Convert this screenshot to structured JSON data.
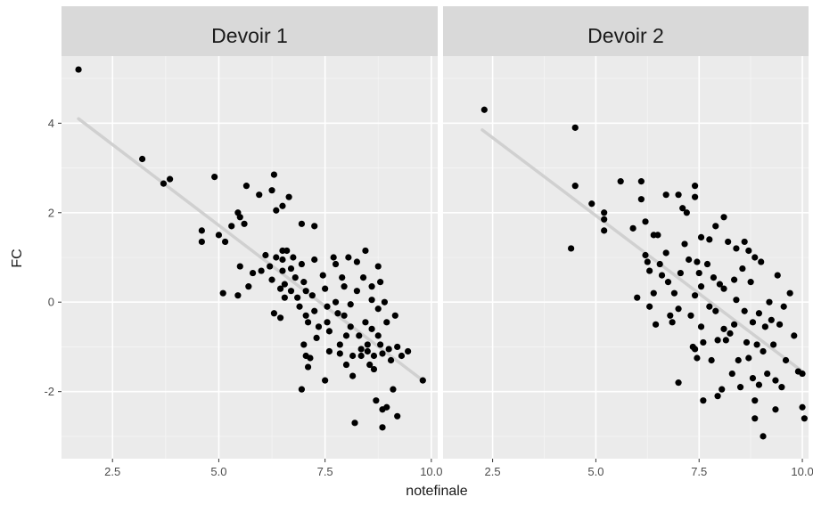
{
  "chart_data": {
    "type": "scatter",
    "xlabel": "notefinale",
    "ylabel": "FC",
    "xlim": [
      1.3,
      10.15
    ],
    "ylim": [
      -3.5,
      5.5
    ],
    "x_ticks": [
      2.5,
      5.0,
      7.5,
      10.0
    ],
    "x_tick_labels": [
      "2.5",
      "5.0",
      "7.5",
      "10.0"
    ],
    "y_ticks": [
      -2,
      0,
      2,
      4
    ],
    "y_tick_labels": [
      "-2",
      "0",
      "2",
      "4"
    ],
    "grid": true,
    "legend": "none",
    "colors": {
      "points": "#000000",
      "fit_line": "#d0d0d0",
      "panel": "#ebebeb",
      "strip": "#d9d9d9"
    },
    "panels": [
      {
        "name": "Devoir 1",
        "fit_line": {
          "x": [
            1.7,
            9.8
          ],
          "y": [
            4.1,
            -1.75
          ]
        },
        "points": [
          [
            1.7,
            5.2
          ],
          [
            3.2,
            3.2
          ],
          [
            3.7,
            2.65
          ],
          [
            3.85,
            2.75
          ],
          [
            4.9,
            2.8
          ],
          [
            4.6,
            1.6
          ],
          [
            4.6,
            1.35
          ],
          [
            5.0,
            1.5
          ],
          [
            5.15,
            1.35
          ],
          [
            5.1,
            0.2
          ],
          [
            5.3,
            1.7
          ],
          [
            5.45,
            2.0
          ],
          [
            5.65,
            2.6
          ],
          [
            5.6,
            1.75
          ],
          [
            5.5,
            1.9
          ],
          [
            5.5,
            0.8
          ],
          [
            5.45,
            0.15
          ],
          [
            5.7,
            0.35
          ],
          [
            5.8,
            0.65
          ],
          [
            5.95,
            2.4
          ],
          [
            6.1,
            1.05
          ],
          [
            6.0,
            0.7
          ],
          [
            6.2,
            0.8
          ],
          [
            6.3,
            2.85
          ],
          [
            6.25,
            2.5
          ],
          [
            6.25,
            0.5
          ],
          [
            6.35,
            2.05
          ],
          [
            6.5,
            2.15
          ],
          [
            6.65,
            2.35
          ],
          [
            6.3,
            -0.25
          ],
          [
            6.45,
            -0.35
          ],
          [
            6.35,
            1.0
          ],
          [
            6.5,
            1.15
          ],
          [
            6.6,
            1.15
          ],
          [
            6.5,
            0.95
          ],
          [
            6.5,
            0.7
          ],
          [
            6.45,
            0.3
          ],
          [
            6.55,
            0.4
          ],
          [
            6.55,
            0.1
          ],
          [
            6.7,
            0.75
          ],
          [
            6.75,
            1.0
          ],
          [
            6.8,
            0.55
          ],
          [
            6.7,
            0.25
          ],
          [
            6.85,
            0.1
          ],
          [
            6.9,
            -0.1
          ],
          [
            6.95,
            1.75
          ],
          [
            6.95,
            0.85
          ],
          [
            7.0,
            0.45
          ],
          [
            7.05,
            0.25
          ],
          [
            7.05,
            -0.3
          ],
          [
            7.1,
            -0.45
          ],
          [
            7.2,
            0.15
          ],
          [
            7.25,
            1.7
          ],
          [
            7.25,
            0.95
          ],
          [
            7.25,
            -0.2
          ],
          [
            7.35,
            -0.55
          ],
          [
            7.0,
            -0.95
          ],
          [
            7.05,
            -1.2
          ],
          [
            7.1,
            -1.45
          ],
          [
            6.95,
            -1.95
          ],
          [
            7.15,
            -1.25
          ],
          [
            7.3,
            -0.8
          ],
          [
            7.45,
            0.6
          ],
          [
            7.5,
            0.3
          ],
          [
            7.55,
            -0.1
          ],
          [
            7.55,
            -0.45
          ],
          [
            7.6,
            -0.65
          ],
          [
            7.6,
            -1.1
          ],
          [
            7.5,
            -1.75
          ],
          [
            7.7,
            1.0
          ],
          [
            7.75,
            0.85
          ],
          [
            7.75,
            0.0
          ],
          [
            7.8,
            -0.25
          ],
          [
            7.85,
            -0.95
          ],
          [
            7.85,
            -1.15
          ],
          [
            7.9,
            0.55
          ],
          [
            7.95,
            0.35
          ],
          [
            7.95,
            -0.3
          ],
          [
            8.0,
            -0.75
          ],
          [
            8.0,
            -1.4
          ],
          [
            8.05,
            1.0
          ],
          [
            8.1,
            -0.05
          ],
          [
            8.1,
            -0.55
          ],
          [
            8.15,
            -1.2
          ],
          [
            8.15,
            -1.65
          ],
          [
            8.2,
            -2.7
          ],
          [
            8.25,
            0.9
          ],
          [
            8.25,
            0.25
          ],
          [
            8.3,
            -0.75
          ],
          [
            8.35,
            -1.05
          ],
          [
            8.35,
            -1.2
          ],
          [
            8.4,
            0.55
          ],
          [
            8.45,
            1.15
          ],
          [
            8.45,
            -0.45
          ],
          [
            8.5,
            -0.95
          ],
          [
            8.5,
            -1.1
          ],
          [
            8.55,
            -1.4
          ],
          [
            8.6,
            0.35
          ],
          [
            8.6,
            0.05
          ],
          [
            8.6,
            -0.6
          ],
          [
            8.65,
            -1.2
          ],
          [
            8.65,
            -1.5
          ],
          [
            8.7,
            -2.2
          ],
          [
            8.75,
            0.8
          ],
          [
            8.75,
            -0.15
          ],
          [
            8.75,
            -0.75
          ],
          [
            8.8,
            0.45
          ],
          [
            8.8,
            -0.95
          ],
          [
            8.85,
            -1.15
          ],
          [
            8.85,
            -2.4
          ],
          [
            8.85,
            -2.8
          ],
          [
            8.9,
            0.0
          ],
          [
            8.95,
            -0.45
          ],
          [
            8.95,
            -2.35
          ],
          [
            9.0,
            -1.05
          ],
          [
            9.05,
            -1.3
          ],
          [
            9.1,
            -1.95
          ],
          [
            9.15,
            -0.3
          ],
          [
            9.2,
            -1.0
          ],
          [
            9.2,
            -2.55
          ],
          [
            9.3,
            -1.2
          ],
          [
            9.45,
            -1.1
          ],
          [
            9.8,
            -1.75
          ]
        ]
      },
      {
        "name": "Devoir 2",
        "fit_line": {
          "x": [
            2.25,
            10.0
          ],
          "y": [
            3.85,
            -1.55
          ]
        },
        "points": [
          [
            2.3,
            4.3
          ],
          [
            4.5,
            3.9
          ],
          [
            4.5,
            2.6
          ],
          [
            4.4,
            1.2
          ],
          [
            4.9,
            2.2
          ],
          [
            5.2,
            2.0
          ],
          [
            5.2,
            1.85
          ],
          [
            5.2,
            1.6
          ],
          [
            5.6,
            2.7
          ],
          [
            5.9,
            1.65
          ],
          [
            6.1,
            2.7
          ],
          [
            6.1,
            2.3
          ],
          [
            6.0,
            0.1
          ],
          [
            6.2,
            1.8
          ],
          [
            6.2,
            1.05
          ],
          [
            6.25,
            0.9
          ],
          [
            6.3,
            0.7
          ],
          [
            6.3,
            -0.1
          ],
          [
            6.4,
            1.5
          ],
          [
            6.4,
            0.2
          ],
          [
            6.45,
            -0.5
          ],
          [
            6.5,
            1.5
          ],
          [
            6.55,
            0.85
          ],
          [
            6.6,
            0.6
          ],
          [
            6.7,
            2.4
          ],
          [
            6.7,
            1.1
          ],
          [
            6.75,
            0.45
          ],
          [
            6.8,
            -0.3
          ],
          [
            6.85,
            -0.45
          ],
          [
            6.9,
            0.2
          ],
          [
            7.0,
            2.4
          ],
          [
            7.05,
            0.65
          ],
          [
            7.0,
            -0.15
          ],
          [
            7.0,
            -1.8
          ],
          [
            7.1,
            2.1
          ],
          [
            7.15,
            1.3
          ],
          [
            7.2,
            2.0
          ],
          [
            7.25,
            0.95
          ],
          [
            7.3,
            -0.3
          ],
          [
            7.35,
            -1.0
          ],
          [
            7.4,
            2.6
          ],
          [
            7.4,
            2.35
          ],
          [
            7.4,
            0.15
          ],
          [
            7.4,
            -1.05
          ],
          [
            7.45,
            -1.25
          ],
          [
            7.45,
            0.9
          ],
          [
            7.5,
            0.65
          ],
          [
            7.55,
            1.45
          ],
          [
            7.55,
            0.35
          ],
          [
            7.55,
            -0.55
          ],
          [
            7.6,
            -0.9
          ],
          [
            7.6,
            -2.2
          ],
          [
            7.7,
            0.85
          ],
          [
            7.75,
            1.4
          ],
          [
            7.75,
            -0.1
          ],
          [
            7.8,
            -1.3
          ],
          [
            7.85,
            0.55
          ],
          [
            7.9,
            1.7
          ],
          [
            7.9,
            -0.2
          ],
          [
            7.95,
            -0.85
          ],
          [
            7.95,
            -2.1
          ],
          [
            8.0,
            0.4
          ],
          [
            8.05,
            -1.95
          ],
          [
            8.1,
            1.9
          ],
          [
            8.1,
            0.3
          ],
          [
            8.1,
            -0.6
          ],
          [
            8.15,
            -0.85
          ],
          [
            8.2,
            1.35
          ],
          [
            8.25,
            -0.7
          ],
          [
            8.3,
            -1.6
          ],
          [
            8.35,
            0.5
          ],
          [
            8.35,
            -0.5
          ],
          [
            8.4,
            1.2
          ],
          [
            8.4,
            0.05
          ],
          [
            8.45,
            -1.3
          ],
          [
            8.5,
            -1.9
          ],
          [
            8.55,
            0.75
          ],
          [
            8.6,
            1.35
          ],
          [
            8.6,
            -0.2
          ],
          [
            8.65,
            -0.9
          ],
          [
            8.7,
            1.15
          ],
          [
            8.7,
            -1.25
          ],
          [
            8.75,
            0.45
          ],
          [
            8.8,
            -0.45
          ],
          [
            8.8,
            -1.7
          ],
          [
            8.85,
            1.0
          ],
          [
            8.85,
            -2.2
          ],
          [
            8.85,
            -2.6
          ],
          [
            8.9,
            -0.95
          ],
          [
            8.95,
            -0.25
          ],
          [
            8.95,
            -1.85
          ],
          [
            9.0,
            0.9
          ],
          [
            9.05,
            -1.1
          ],
          [
            9.05,
            -3.0
          ],
          [
            9.1,
            -0.55
          ],
          [
            9.15,
            -1.6
          ],
          [
            9.2,
            0.0
          ],
          [
            9.25,
            -0.4
          ],
          [
            9.3,
            -0.95
          ],
          [
            9.35,
            -1.75
          ],
          [
            9.35,
            -2.4
          ],
          [
            9.4,
            0.6
          ],
          [
            9.45,
            -0.5
          ],
          [
            9.5,
            -1.9
          ],
          [
            9.55,
            -0.1
          ],
          [
            9.6,
            -1.3
          ],
          [
            9.7,
            0.2
          ],
          [
            9.8,
            -0.75
          ],
          [
            9.9,
            -1.55
          ],
          [
            10.0,
            -1.6
          ],
          [
            10.0,
            -2.35
          ],
          [
            10.05,
            -2.6
          ]
        ]
      }
    ]
  }
}
